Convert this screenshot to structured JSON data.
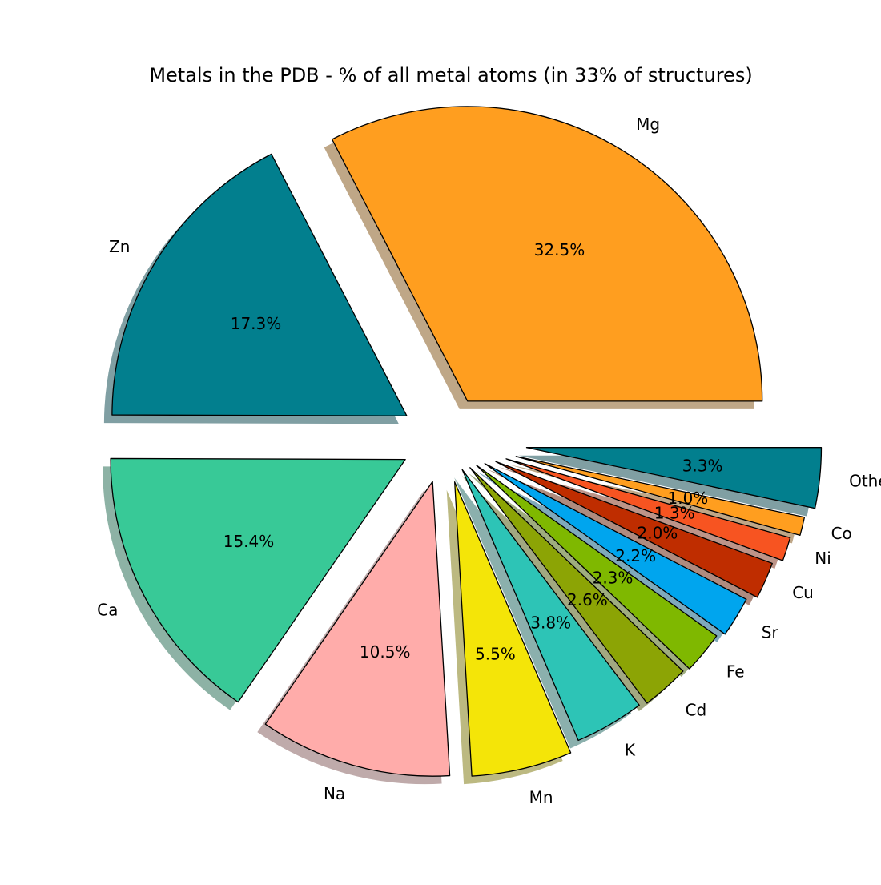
{
  "chart_data": {
    "type": "pie",
    "title": "Metals in the PDB - % of all metal atoms (in 33% of structures)",
    "labels": [
      "Mg",
      "Zn",
      "Ca",
      "Na",
      "Mn",
      "K",
      "Cd",
      "Fe",
      "Sr",
      "Cu",
      "Ni",
      "Co",
      "Others"
    ],
    "values": [
      32.5,
      17.3,
      15.4,
      10.5,
      5.5,
      3.8,
      2.6,
      2.3,
      2.2,
      2.0,
      1.3,
      1.0,
      3.3
    ],
    "value_labels": [
      "32.5%",
      "17.3%",
      "15.4%",
      "10.5%",
      "5.5%",
      "3.8%",
      "2.6%",
      "2.3%",
      "2.2%",
      "2.0%",
      "1.3%",
      "1.0%",
      "3.3%"
    ],
    "colors": [
      "#FF9E1F",
      "#027F8E",
      "#38C997",
      "#FFACAA",
      "#F4E508",
      "#2DC4B6",
      "#8CA405",
      "#7FB800",
      "#00A5EE",
      "#BF2D00",
      "#F75421",
      "#FF9E1F",
      "#027F8E"
    ],
    "start_angle_deg": 0,
    "direction": "counterclockwise",
    "shadow": true,
    "exploded": true,
    "legend": "none"
  }
}
